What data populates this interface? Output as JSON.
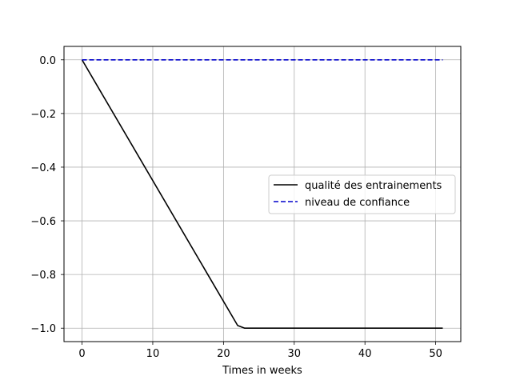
{
  "chart_data": {
    "type": "line",
    "title": "",
    "xlabel": "Times in weeks",
    "ylabel": "",
    "xlim": [
      -2.55,
      53.55
    ],
    "ylim": [
      -1.05,
      0.05
    ],
    "xticks": [
      0,
      10,
      20,
      30,
      40,
      50
    ],
    "yticks": [
      0.0,
      -0.2,
      -0.4,
      -0.6,
      -0.8,
      -1.0
    ],
    "xtick_labels": [
      "0",
      "10",
      "20",
      "30",
      "40",
      "50"
    ],
    "ytick_labels": [
      "0.0",
      "−0.2",
      "−0.4",
      "−0.6",
      "−0.8",
      "−1.0"
    ],
    "grid": true,
    "legend_position": "center-right",
    "series": [
      {
        "name": "qualité des entrainements",
        "color": "#000000",
        "style": "solid",
        "x": [
          0,
          22,
          23,
          51
        ],
        "y": [
          0.0,
          -0.99,
          -1.0,
          -1.0
        ]
      },
      {
        "name": "niveau de confiance",
        "color": "#0000cc",
        "style": "dashed",
        "x": [
          0,
          51
        ],
        "y": [
          0.0,
          0.0
        ]
      }
    ]
  }
}
